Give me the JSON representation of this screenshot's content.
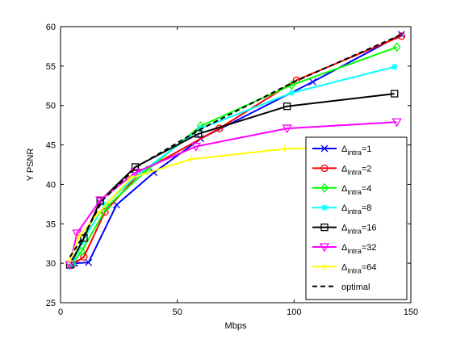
{
  "chart_data": {
    "type": "line",
    "title": "",
    "xlabel": "Mbps",
    "ylabel": "Y PSNR",
    "xlim": [
      0,
      150
    ],
    "ylim": [
      25,
      60
    ],
    "xticks": [
      0,
      50,
      100,
      150
    ],
    "yticks": [
      25,
      30,
      35,
      40,
      45,
      50,
      55,
      60
    ],
    "grid": false,
    "legend_position": "bottom-right",
    "series": [
      {
        "name": "Δintra=1",
        "sub": "intra",
        "base": "Δ",
        "suffix": "=1",
        "color": "#0000ff",
        "marker": "x",
        "dashed": false,
        "points": [
          [
            6,
            30.0
          ],
          [
            12,
            30.1
          ],
          [
            24,
            37.4
          ],
          [
            40,
            41.5
          ],
          [
            60,
            45.8
          ],
          [
            108,
            53.0
          ],
          [
            146,
            59.0
          ]
        ]
      },
      {
        "name": "Δintra=2",
        "sub": "intra",
        "base": "Δ",
        "suffix": "=2",
        "color": "#ff0000",
        "marker": "circle",
        "dashed": false,
        "points": [
          [
            5,
            29.8
          ],
          [
            10,
            30.8
          ],
          [
            19,
            36.5
          ],
          [
            34,
            41.5
          ],
          [
            68,
            47.1
          ],
          [
            101,
            53.2
          ],
          [
            146,
            58.8
          ]
        ]
      },
      {
        "name": "Δintra=4",
        "sub": "intra",
        "base": "Δ",
        "suffix": "=4",
        "color": "#00ff00",
        "marker": "diamond",
        "dashed": false,
        "points": [
          [
            5,
            29.9
          ],
          [
            9,
            31.5
          ],
          [
            20,
            37.2
          ],
          [
            37,
            41.8
          ],
          [
            60,
            47.4
          ],
          [
            99,
            52.6
          ],
          [
            144,
            57.4
          ]
        ]
      },
      {
        "name": "Δintra=8",
        "sub": "intra",
        "base": "Δ",
        "suffix": "=8",
        "color": "#00ffff",
        "marker": "star",
        "dashed": false,
        "points": [
          [
            5,
            29.9
          ],
          [
            9,
            32.6
          ],
          [
            19,
            37.4
          ],
          [
            33,
            41.2
          ],
          [
            60,
            47.1
          ],
          [
            99,
            51.6
          ],
          [
            143,
            54.9
          ]
        ]
      },
      {
        "name": "Δintra=16",
        "sub": "intra",
        "base": "Δ",
        "suffix": "=16",
        "color": "#000000",
        "marker": "square",
        "dashed": false,
        "points": [
          [
            4,
            29.8
          ],
          [
            10,
            33.2
          ],
          [
            17,
            37.9
          ],
          [
            32,
            42.2
          ],
          [
            59,
            46.4
          ],
          [
            97,
            49.9
          ],
          [
            143,
            51.5
          ]
        ]
      },
      {
        "name": "Δintra=32",
        "sub": "intra",
        "base": "Δ",
        "suffix": "=32",
        "color": "#ff00ff",
        "marker": "triangle-down",
        "dashed": false,
        "points": [
          [
            4,
            29.8
          ],
          [
            7,
            33.8
          ],
          [
            17,
            38.0
          ],
          [
            32,
            41.5
          ],
          [
            58,
            44.8
          ],
          [
            97,
            47.1
          ],
          [
            144,
            47.9
          ]
        ]
      },
      {
        "name": "Δintra=64",
        "sub": "intra",
        "base": "Δ",
        "suffix": "=64",
        "color": "#ffff00",
        "marker": "plus",
        "dashed": false,
        "points": [
          [
            4,
            30.3
          ],
          [
            8,
            33.4
          ],
          [
            16,
            36.3
          ],
          [
            30,
            40.8
          ],
          [
            56,
            43.2
          ],
          [
            96,
            44.5
          ],
          [
            140,
            45.0
          ]
        ]
      },
      {
        "name": "optimal",
        "sub": "",
        "base": "optimal",
        "suffix": "",
        "color": "#000000",
        "marker": "none",
        "dashed": true,
        "points": [
          [
            4,
            30.8
          ],
          [
            10,
            33.5
          ],
          [
            18,
            38.0
          ],
          [
            33,
            42.3
          ],
          [
            60,
            47.0
          ],
          [
            100,
            53.0
          ],
          [
            146,
            59.0
          ]
        ]
      }
    ]
  }
}
